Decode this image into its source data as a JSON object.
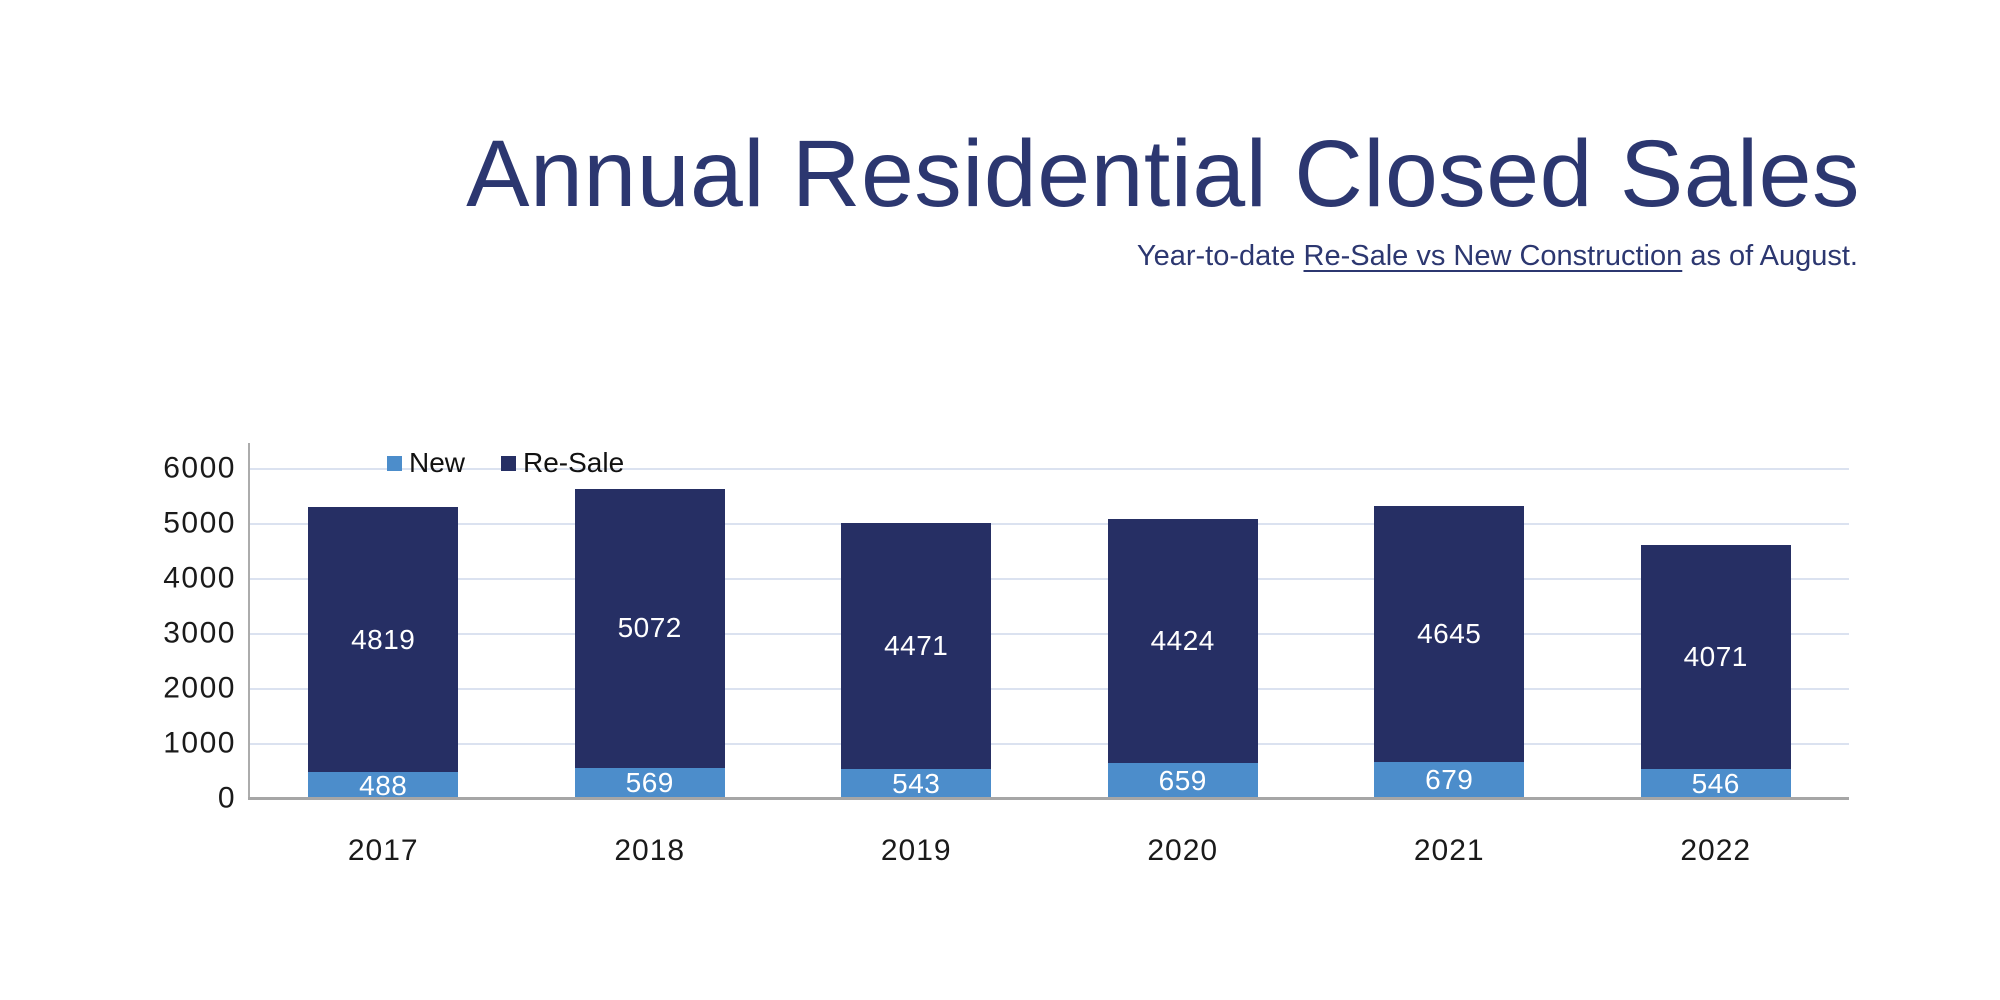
{
  "header": {
    "title": "Annual Residential Closed Sales",
    "subtitle_prefix": "Year-to-date ",
    "subtitle_underlined": "Re-Sale vs New Construction",
    "subtitle_suffix": " as of August."
  },
  "chart_data": {
    "type": "bar",
    "stacked": true,
    "title": "Annual Residential Closed Sales",
    "subtitle": "Year-to-date Re-Sale vs New Construction as of August.",
    "categories": [
      "2017",
      "2018",
      "2019",
      "2020",
      "2021",
      "2022"
    ],
    "series": [
      {
        "name": "New",
        "color": "#4C8DCB",
        "values": [
          488,
          569,
          543,
          659,
          679,
          546
        ]
      },
      {
        "name": "Re-Sale",
        "color": "#262F64",
        "values": [
          4819,
          5072,
          4471,
          4424,
          4645,
          4071
        ]
      }
    ],
    "totals": [
      5307,
      5641,
      5014,
      5083,
      5324,
      4617
    ],
    "xlabel": "",
    "ylabel": "",
    "ylim": [
      0,
      6000
    ],
    "yticks": [
      0,
      1000,
      2000,
      3000,
      4000,
      5000,
      6000
    ],
    "grid": true,
    "legend_position": "top-left",
    "value_labels": true
  },
  "colors": {
    "title": "#2C3770",
    "bar_new": "#4C8DCB",
    "bar_resale": "#262F64",
    "gridline": "#DBE2F0",
    "axis": "#A6A6A6",
    "tick_label": "#1A1A1A",
    "value_label": "#FFFFFF",
    "background": "#FFFFFF"
  }
}
